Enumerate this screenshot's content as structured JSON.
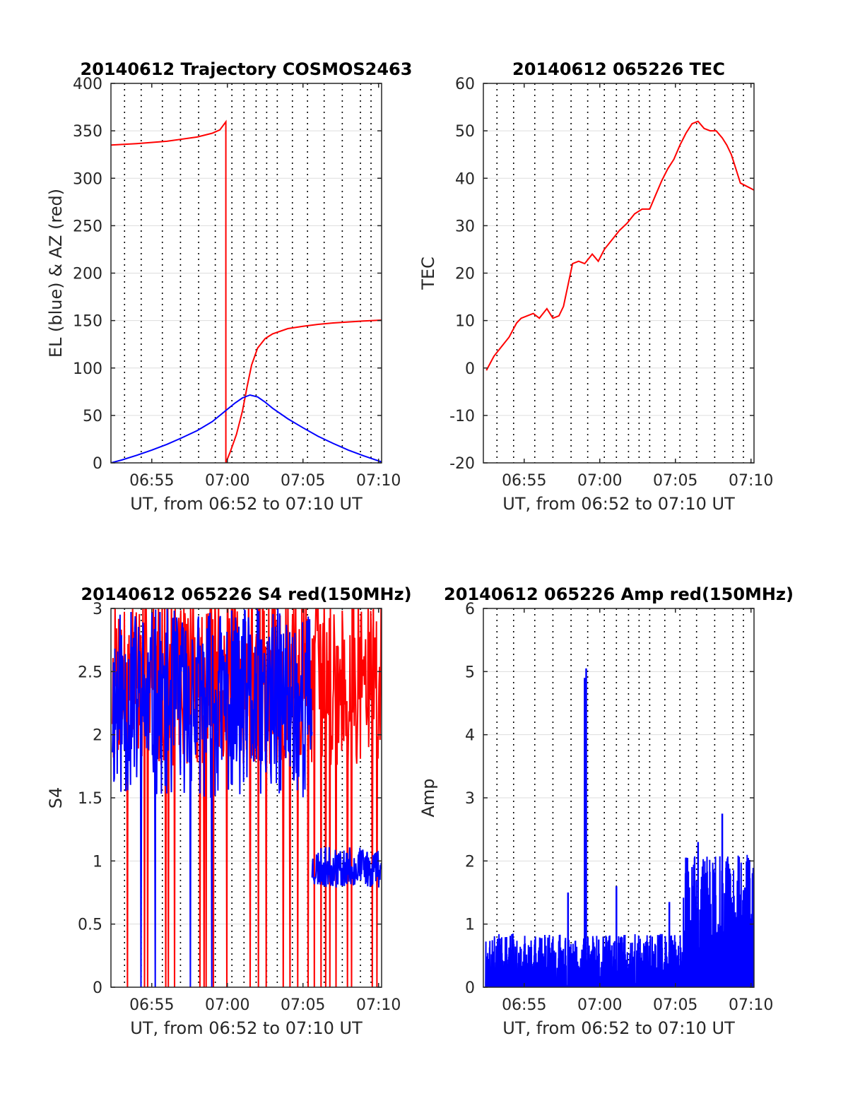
{
  "figure": {
    "background": "#ffffff"
  },
  "colors": {
    "red": "#ff0000",
    "blue": "#0000ff",
    "axis": "#262626",
    "grid": "#dddddd",
    "vgrid": "#000000"
  },
  "chart_data": [
    {
      "id": "traj",
      "type": "line",
      "title": "20140612 Trajectory COSMOS2463",
      "xlabel": "UT, from 06:52 to 07:10 UT",
      "ylabel": "EL (blue) & AZ (red)",
      "xlim": [
        412.3,
        430.2
      ],
      "ylim": [
        0,
        400
      ],
      "yticks": [
        0,
        50,
        100,
        150,
        200,
        250,
        300,
        350,
        400
      ],
      "ytick_labels": [
        "0",
        "50",
        "100",
        "150",
        "200",
        "250",
        "300",
        "350",
        "400"
      ],
      "xticks": [
        415,
        420,
        425,
        430
      ],
      "xtick_labels": [
        "06:55",
        "07:00",
        "07:05",
        "07:10"
      ],
      "vlines": [
        413.2,
        414.3,
        415.7,
        416.9,
        418.1,
        419.2,
        420.3,
        421.1,
        421.9,
        422.6,
        423.3,
        424.3,
        425.3,
        426.4,
        427.6,
        428.8,
        429.5
      ],
      "grid": "horizontal",
      "series": [
        {
          "color": "#ff0000",
          "x": [
            412.3,
            414,
            416,
            418,
            419,
            419.5,
            419.9,
            419.9,
            420.2,
            420.6,
            421.0,
            421.3,
            421.6,
            422.0,
            422.5,
            423.0,
            424.0,
            425.0,
            426.0,
            427.0,
            428.0,
            429.0,
            430.2
          ],
          "y": [
            335,
            336.5,
            339,
            343.5,
            347.5,
            351,
            359.5,
            0,
            12,
            30,
            55,
            80,
            103,
            121,
            131,
            136,
            141.5,
            144,
            146,
            147.5,
            148.5,
            149.5,
            150.5
          ]
        },
        {
          "color": "#0000ff",
          "x": [
            412.3,
            413,
            414,
            415,
            416,
            417,
            418,
            419,
            419.5,
            420,
            420.5,
            421,
            421.5,
            422,
            422.5,
            423,
            424,
            425,
            426,
            427,
            428,
            429,
            430.2
          ],
          "y": [
            0,
            3,
            8,
            13.5,
            19.5,
            26.5,
            34,
            43.5,
            50,
            56.5,
            63,
            68.5,
            71.5,
            69.5,
            64,
            57.5,
            46.5,
            37,
            28,
            20.5,
            13.5,
            7.5,
            1
          ]
        }
      ]
    },
    {
      "id": "tec",
      "type": "line",
      "title": "20140612 065226 TEC",
      "xlabel": "UT, from 06:52 to 07:10 UT",
      "ylabel": "TEC",
      "xlim": [
        412.3,
        430.2
      ],
      "ylim": [
        -20,
        60
      ],
      "yticks": [
        -20,
        -10,
        0,
        10,
        20,
        30,
        40,
        50,
        60
      ],
      "ytick_labels": [
        "-20",
        "-10",
        "0",
        "10",
        "20",
        "30",
        "40",
        "50",
        "60"
      ],
      "xticks": [
        415,
        420,
        425,
        430
      ],
      "xtick_labels": [
        "06:55",
        "07:00",
        "07:05",
        "07:10"
      ],
      "vlines": [
        413.2,
        414.3,
        415.7,
        416.9,
        418.1,
        419.2,
        420.3,
        421.1,
        421.9,
        422.6,
        423.3,
        424.3,
        425.3,
        426.4,
        427.6,
        428.8,
        429.5
      ],
      "grid": "horizontal",
      "series": [
        {
          "color": "#ff0000",
          "x": [
            412.5,
            413.0,
            413.5,
            414.0,
            414.5,
            414.8,
            415.2,
            415.6,
            416.0,
            416.5,
            416.9,
            417.3,
            417.6,
            417.9,
            418.2,
            418.6,
            419.0,
            419.5,
            419.9,
            420.3,
            420.8,
            421.3,
            421.8,
            422.3,
            422.8,
            423.3,
            423.7,
            424.1,
            424.5,
            424.9,
            425.3,
            425.7,
            426.1,
            426.5,
            426.9,
            427.3,
            427.7,
            428.1,
            428.4,
            428.7,
            429.0,
            429.3,
            429.6,
            430.2
          ],
          "y": [
            -0.5,
            2.5,
            4.5,
            6.5,
            9.5,
            10.5,
            11,
            11.5,
            10.5,
            12.5,
            10.5,
            11,
            13,
            17.5,
            22,
            22.5,
            22,
            24,
            22.5,
            25,
            27,
            29,
            30.5,
            32.5,
            33.5,
            33.5,
            36.5,
            39.5,
            42,
            44,
            47,
            49.5,
            51.5,
            52,
            50.5,
            50,
            50,
            48.5,
            47,
            45,
            42,
            39,
            38.5,
            37.5
          ]
        }
      ]
    },
    {
      "id": "s4",
      "type": "line",
      "title": "20140612 065226 S4 red(150MHz)",
      "xlabel": "UT, from 06:52 to 07:10 UT",
      "ylabel": "S4",
      "xlim": [
        412.3,
        430.2
      ],
      "ylim": [
        0,
        3
      ],
      "yticks": [
        0,
        0.5,
        1,
        1.5,
        2,
        2.5,
        3
      ],
      "ytick_labels": [
        "0",
        "0.5",
        "1",
        "1.5",
        "2",
        "2.5",
        "3"
      ],
      "xticks": [
        415,
        420,
        425,
        430
      ],
      "xtick_labels": [
        "06:55",
        "07:00",
        "07:05",
        "07:10"
      ],
      "vlines": [
        413.2,
        414.3,
        415.7,
        416.9,
        418.1,
        419.2,
        420.3,
        421.1,
        421.9,
        422.6,
        423.3,
        424.3,
        425.3,
        426.4,
        427.6,
        428.8,
        429.5
      ],
      "grid": "horizontal",
      "noise": [
        {
          "color": "#ff0000",
          "x0": 412.4,
          "x1": 430.2,
          "n": 520,
          "base": 2.45,
          "spread": 0.7,
          "clipHi": 3,
          "seed": 7,
          "dropProb": 0.05
        },
        {
          "color": "#0000ff",
          "x0": 412.4,
          "x1": 425.6,
          "n": 420,
          "base": 2.25,
          "spread": 0.75,
          "clipHi": 3,
          "seed": 11,
          "dropProb": 0.02
        },
        {
          "color": "#0000ff",
          "x0": 425.6,
          "x1": 430.2,
          "n": 170,
          "base": 0.95,
          "spread": 0.16,
          "clipHi": 3,
          "seed": 23,
          "dropProb": 0
        }
      ]
    },
    {
      "id": "amp",
      "type": "line",
      "title": "20140612 065226 Amp red(150MHz)",
      "xlabel": "UT, from 06:52 to 07:10 UT",
      "ylabel": "Amp",
      "xlim": [
        412.3,
        430.2
      ],
      "ylim": [
        0,
        6
      ],
      "yticks": [
        0,
        1,
        2,
        3,
        4,
        5,
        6
      ],
      "ytick_labels": [
        "0",
        "1",
        "2",
        "3",
        "4",
        "5",
        "6"
      ],
      "xticks": [
        415,
        420,
        425,
        430
      ],
      "xtick_labels": [
        "06:55",
        "07:00",
        "07:05",
        "07:10"
      ],
      "vlines": [
        413.2,
        414.3,
        415.7,
        416.9,
        418.1,
        419.2,
        420.3,
        421.1,
        421.9,
        422.6,
        423.3,
        424.3,
        425.3,
        426.4,
        427.6,
        428.8,
        429.5
      ],
      "grid": "horizontal",
      "spikes": [
        [
          419.0,
          4.9
        ],
        [
          419.1,
          5.05
        ],
        [
          421.1,
          1.6
        ],
        [
          417.9,
          1.5
        ],
        [
          428.1,
          2.75
        ],
        [
          424.6,
          1.35
        ],
        [
          426.5,
          2.3
        ]
      ],
      "noise": [
        {
          "color": "#0000ff",
          "x0": 412.45,
          "x1": 425.5,
          "n": 650,
          "base": 0.35,
          "spread": 0.5,
          "clipHi": 6,
          "seed": 3,
          "dropProb": 0,
          "floor": 0
        },
        {
          "color": "#0000ff",
          "x0": 425.5,
          "x1": 430.2,
          "n": 260,
          "base": 0.9,
          "spread": 1.2,
          "clipHi": 6,
          "seed": 5,
          "dropProb": 0,
          "floor": 0
        }
      ]
    }
  ]
}
